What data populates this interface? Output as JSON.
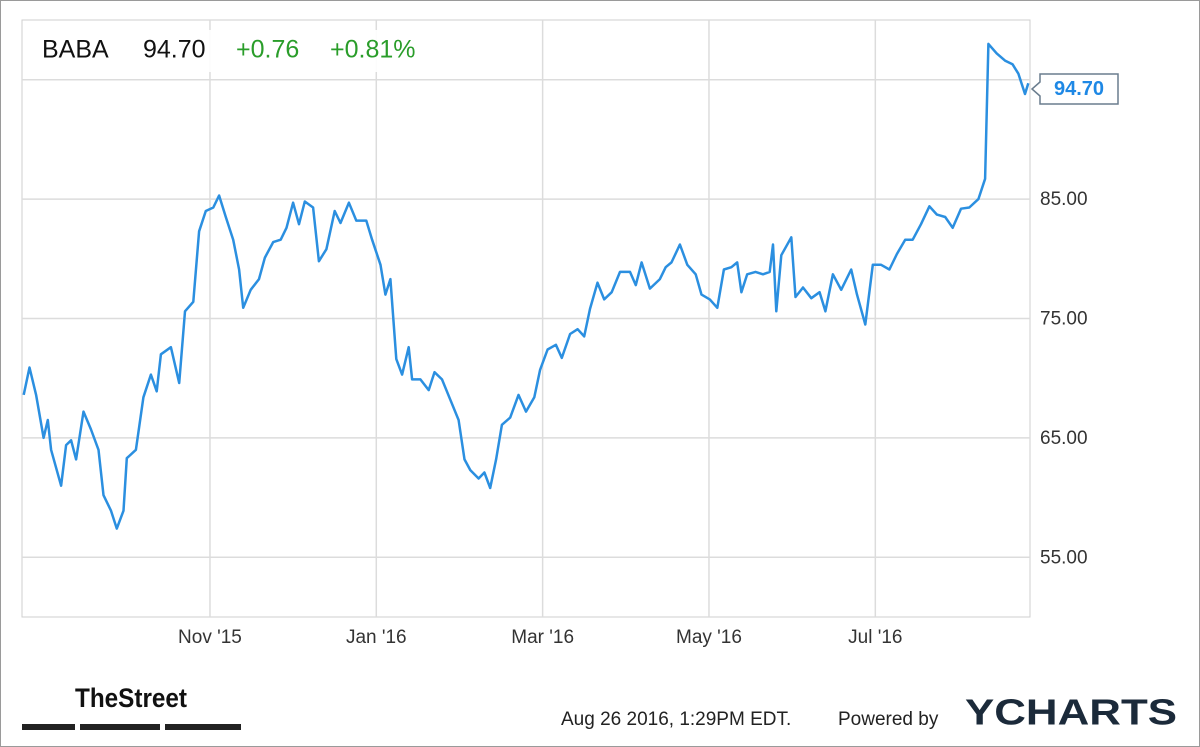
{
  "chart_data": {
    "type": "line",
    "ticker": "BABA",
    "price": "94.70",
    "change": "+0.76",
    "change_pct": "+0.81%",
    "color": "#2b8fe0",
    "grid": true,
    "xlim": [
      8.74,
      20.86
    ],
    "xticks": [
      {
        "value": 11,
        "label": "Nov '15"
      },
      {
        "value": 13,
        "label": "Jan '16"
      },
      {
        "value": 15,
        "label": "Mar '16"
      },
      {
        "value": 17,
        "label": "May '16"
      },
      {
        "value": 19,
        "label": "Jul '16"
      }
    ],
    "ylim": [
      50,
      100
    ],
    "yticks": [
      {
        "value": 55,
        "label": "55.00"
      },
      {
        "value": 65,
        "label": "65.00"
      },
      {
        "value": 75,
        "label": "75.00"
      },
      {
        "value": 85,
        "label": "85.00"
      },
      {
        "value": 95,
        "label": ""
      }
    ],
    "x": [
      8.76,
      8.83,
      8.91,
      9.0,
      9.05,
      9.09,
      9.21,
      9.27,
      9.33,
      9.39,
      9.48,
      9.57,
      9.66,
      9.72,
      9.81,
      9.88,
      9.96,
      10.0,
      10.11,
      10.2,
      10.29,
      10.36,
      10.41,
      10.53,
      10.63,
      10.7,
      10.8,
      10.87,
      10.95,
      11.04,
      11.11,
      11.19,
      11.28,
      11.35,
      11.4,
      11.49,
      11.59,
      11.66,
      11.76,
      11.85,
      11.92,
      12.0,
      12.07,
      12.14,
      12.24,
      12.31,
      12.4,
      12.5,
      12.57,
      12.67,
      12.76,
      12.88,
      12.95,
      13.05,
      13.11,
      13.17,
      13.24,
      13.31,
      13.39,
      13.43,
      13.53,
      13.63,
      13.7,
      13.79,
      13.89,
      13.99,
      14.06,
      14.13,
      14.23,
      14.3,
      14.37,
      14.44,
      14.51,
      14.61,
      14.71,
      14.8,
      14.9,
      14.97,
      15.06,
      15.16,
      15.23,
      15.33,
      15.42,
      15.5,
      15.57,
      15.66,
      15.74,
      15.83,
      15.93,
      16.05,
      16.12,
      16.19,
      16.29,
      16.41,
      16.48,
      16.55,
      16.65,
      16.74,
      16.84,
      16.91,
      17.01,
      17.1,
      17.18,
      17.27,
      17.34,
      17.39,
      17.46,
      17.56,
      17.65,
      17.73,
      17.77,
      17.81,
      17.87,
      17.99,
      18.04,
      18.13,
      18.23,
      18.33,
      18.4,
      18.49,
      18.59,
      18.71,
      18.78,
      18.88,
      18.97,
      19.07,
      19.17,
      19.26,
      19.36,
      19.45,
      19.55,
      19.65,
      19.74,
      19.84,
      19.93,
      20.03,
      20.13,
      20.24,
      20.32,
      20.36,
      20.46,
      20.56,
      20.65,
      20.72,
      20.8,
      20.84
    ],
    "values": [
      68.6,
      70.9,
      68.6,
      65.0,
      66.5,
      64.0,
      61.0,
      64.4,
      64.8,
      63.2,
      67.2,
      65.7,
      64.0,
      60.2,
      58.9,
      57.4,
      58.9,
      63.3,
      64.0,
      68.4,
      70.3,
      68.9,
      72.0,
      72.6,
      69.6,
      75.6,
      76.4,
      82.3,
      84.0,
      84.3,
      85.3,
      83.5,
      81.6,
      79.1,
      75.9,
      77.4,
      78.3,
      80.1,
      81.4,
      81.6,
      82.6,
      84.7,
      82.9,
      84.8,
      84.3,
      79.8,
      80.8,
      84.0,
      83.0,
      84.7,
      83.2,
      83.2,
      81.6,
      79.5,
      77.0,
      78.3,
      71.6,
      70.3,
      72.6,
      69.9,
      69.9,
      69.0,
      70.5,
      69.9,
      68.2,
      66.5,
      63.2,
      62.3,
      61.6,
      62.1,
      60.8,
      63.2,
      66.1,
      66.7,
      68.6,
      67.2,
      68.4,
      70.7,
      72.4,
      72.8,
      71.7,
      73.7,
      74.1,
      73.5,
      75.8,
      78.0,
      76.6,
      77.2,
      78.9,
      78.9,
      77.8,
      79.7,
      77.5,
      78.3,
      79.3,
      79.7,
      81.2,
      79.5,
      78.7,
      77.0,
      76.6,
      75.9,
      79.1,
      79.3,
      79.7,
      77.2,
      78.7,
      78.9,
      78.7,
      78.9,
      81.2,
      75.6,
      80.3,
      81.8,
      76.8,
      77.6,
      76.7,
      77.2,
      75.6,
      78.7,
      77.4,
      79.1,
      77.0,
      74.5,
      79.5,
      79.5,
      79.1,
      80.4,
      81.6,
      81.6,
      82.9,
      84.4,
      83.7,
      83.5,
      82.6,
      84.2,
      84.3,
      85.0,
      86.7,
      98.0,
      97.2,
      96.6,
      96.3,
      95.5,
      93.8,
      94.7
    ]
  },
  "footer": {
    "source_logo": "TheStreet",
    "timestamp": "Aug 26 2016, 1:29PM EDT.",
    "powered_by": "Powered by",
    "brand": "YCHARTS"
  }
}
